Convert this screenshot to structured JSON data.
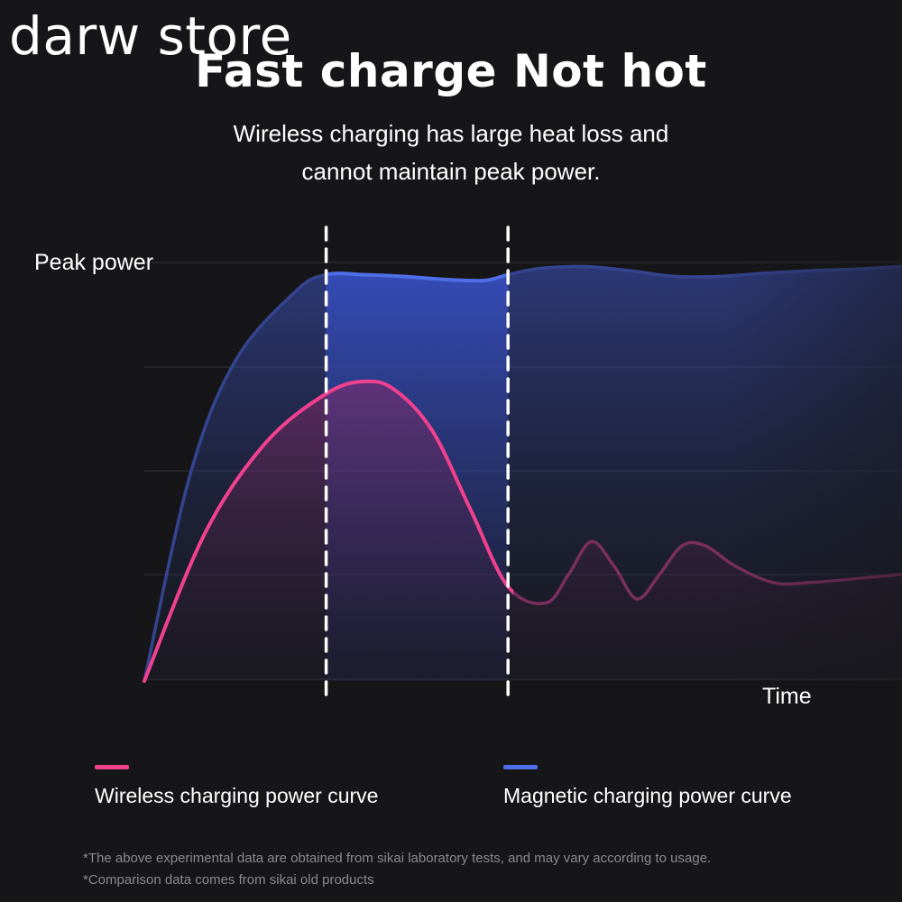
{
  "watermark": "darw store",
  "headline": "Fast charge Not hot",
  "subtitle": {
    "line1": "Wireless charging has large heat loss and",
    "line2": "cannot maintain peak power."
  },
  "chart_data": {
    "type": "line",
    "title": "",
    "ylabel": "Peak power",
    "xlabel": "Time",
    "xlim": [
      0,
      100
    ],
    "ylim": [
      0,
      100
    ],
    "grid": true,
    "legend_position": "bottom",
    "series": [
      {
        "name": "Wireless charging power curve",
        "color": "#f0418f",
        "x": [
          0,
          8,
          16,
          24,
          29,
          33,
          38,
          43,
          48,
          53,
          56,
          59,
          62,
          65,
          68,
          71,
          74,
          78,
          83,
          88,
          100
        ],
        "y": [
          0,
          36,
          58,
          70,
          73,
          71,
          61,
          42,
          23,
          19,
          26,
          34,
          28,
          20,
          26,
          33,
          33,
          28,
          24,
          24,
          26
        ]
      },
      {
        "name": "Magnetic charging power curve",
        "color": "#4f6ee8",
        "x": [
          0,
          6,
          12,
          20,
          24,
          29,
          34,
          40,
          45,
          48,
          52,
          58,
          64,
          70,
          76,
          82,
          88,
          94,
          100
        ],
        "y": [
          0,
          50,
          78,
          95,
          99,
          99,
          98.6,
          97.8,
          97.6,
          99,
          100.5,
          101,
          100,
          98.6,
          98.6,
          99.4,
          100,
          100.4,
          101
        ]
      }
    ],
    "highlight_range": [
      24,
      48
    ]
  },
  "legend": {
    "wireless": "Wireless charging power curve",
    "magnetic": "Magnetic charging power curve"
  },
  "footnotes": {
    "line1": "*The above experimental data are obtained from sikai laboratory tests, and may vary according to usage.",
    "line2": "*Comparison data comes from sikai old products"
  }
}
